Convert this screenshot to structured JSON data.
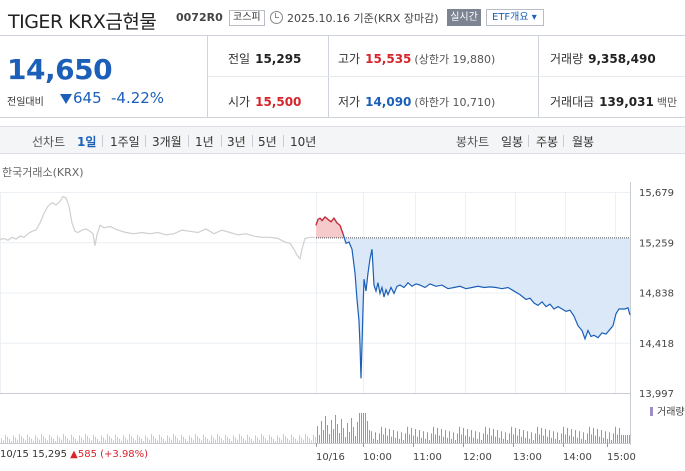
{
  "header": {
    "name": "TIGER KRX금현물",
    "code": "0072R0",
    "market": "코스피",
    "base_date": "2025.10.16 기준(KRX 장마감)",
    "realtime_label": "실시간",
    "etf_label": "ETF개요 ▾"
  },
  "quote": {
    "price": "14,650",
    "change_label": "전일대비",
    "change": "645",
    "change_pct": "-4.22%",
    "prev_close_label": "전일",
    "prev_close": "15,295",
    "open_label": "시가",
    "open": "15,500",
    "high_label": "고가",
    "high": "15,535",
    "upper_limit": "(상한가 19,880)",
    "low_label": "저가",
    "low": "14,090",
    "lower_limit": "(하한가 10,710)",
    "volume_label": "거래량",
    "volume": "9,358,490",
    "amount_label": "거래대금",
    "amount": "139,031",
    "amount_unit": "백만"
  },
  "tabs": {
    "line_label": "선차트",
    "line_periods": [
      "1일",
      "1주일",
      "3개월",
      "1년",
      "3년",
      "5년",
      "10년"
    ],
    "active": "1일",
    "candle_label": "봉차트",
    "candle_periods": [
      "일봉",
      "주봉",
      "월봉"
    ]
  },
  "chart_data": {
    "type": "line",
    "source": "한국거래소(KRX)",
    "y_ticks": [
      "15,679",
      "15,259",
      "14,838",
      "14,418",
      "13,997"
    ],
    "x_ticks": [
      "10/16",
      "10:00",
      "11:00",
      "12:00",
      "13:00",
      "14:00",
      "15:00"
    ],
    "ylim": [
      13997,
      15679
    ],
    "prev_close": 15295,
    "prev_day_series": [
      [
        0,
        15280
      ],
      [
        4,
        15290
      ],
      [
        8,
        15275
      ],
      [
        12,
        15300
      ],
      [
        16,
        15285
      ],
      [
        20,
        15310
      ],
      [
        24,
        15300
      ],
      [
        28,
        15330
      ],
      [
        32,
        15350
      ],
      [
        36,
        15360
      ],
      [
        40,
        15420
      ],
      [
        44,
        15500
      ],
      [
        48,
        15560
      ],
      [
        52,
        15590
      ],
      [
        56,
        15570
      ],
      [
        60,
        15600
      ],
      [
        63,
        15640
      ],
      [
        66,
        15630
      ],
      [
        69,
        15560
      ],
      [
        72,
        15420
      ],
      [
        75,
        15350
      ],
      [
        78,
        15340
      ],
      [
        82,
        15360
      ],
      [
        86,
        15370
      ],
      [
        90,
        15350
      ],
      [
        93,
        15330
      ],
      [
        95,
        15230
      ],
      [
        97,
        15320
      ],
      [
        100,
        15400
      ],
      [
        104,
        15380
      ],
      [
        110,
        15390
      ],
      [
        118,
        15360
      ],
      [
        126,
        15340
      ],
      [
        134,
        15330
      ],
      [
        142,
        15340
      ],
      [
        150,
        15330
      ],
      [
        158,
        15340
      ],
      [
        166,
        15320
      ],
      [
        174,
        15330
      ],
      [
        182,
        15360
      ],
      [
        190,
        15350
      ],
      [
        198,
        15340
      ],
      [
        206,
        15370
      ],
      [
        214,
        15330
      ],
      [
        222,
        15360
      ],
      [
        230,
        15340
      ],
      [
        238,
        15320
      ],
      [
        246,
        15330
      ],
      [
        254,
        15310
      ],
      [
        262,
        15300
      ],
      [
        270,
        15300
      ],
      [
        278,
        15290
      ],
      [
        285,
        15260
      ],
      [
        290,
        15250
      ],
      [
        294,
        15200
      ],
      [
        297,
        15150
      ],
      [
        300,
        15120
      ],
      [
        302,
        15200
      ],
      [
        305,
        15290
      ],
      [
        310,
        15300
      ],
      [
        315,
        15300
      ]
    ],
    "series": [
      [
        316,
        15400
      ],
      [
        318,
        15450
      ],
      [
        320,
        15460
      ],
      [
        322,
        15440
      ],
      [
        325,
        15470
      ],
      [
        328,
        15450
      ],
      [
        331,
        15430
      ],
      [
        334,
        15460
      ],
      [
        337,
        15420
      ],
      [
        340,
        15400
      ],
      [
        343,
        15330
      ],
      [
        346,
        15250
      ],
      [
        349,
        15260
      ],
      [
        352,
        15200
      ],
      [
        355,
        15000
      ],
      [
        357,
        14780
      ],
      [
        359,
        14600
      ],
      [
        360,
        14400
      ],
      [
        361,
        14120
      ],
      [
        362,
        14400
      ],
      [
        363,
        14700
      ],
      [
        364,
        14950
      ],
      [
        366,
        14850
      ],
      [
        368,
        15000
      ],
      [
        370,
        15120
      ],
      [
        372,
        15200
      ],
      [
        374,
        14900
      ],
      [
        376,
        14850
      ],
      [
        378,
        14920
      ],
      [
        380,
        14830
      ],
      [
        382,
        14880
      ],
      [
        384,
        14800
      ],
      [
        386,
        14860
      ],
      [
        388,
        14820
      ],
      [
        391,
        14880
      ],
      [
        394,
        14830
      ],
      [
        397,
        14890
      ],
      [
        400,
        14900
      ],
      [
        404,
        14880
      ],
      [
        408,
        14920
      ],
      [
        412,
        14890
      ],
      [
        416,
        14910
      ],
      [
        420,
        14900
      ],
      [
        425,
        14880
      ],
      [
        430,
        14910
      ],
      [
        436,
        14890
      ],
      [
        442,
        14900
      ],
      [
        448,
        14870
      ],
      [
        454,
        14880
      ],
      [
        460,
        14890
      ],
      [
        466,
        14870
      ],
      [
        472,
        14880
      ],
      [
        478,
        14890
      ],
      [
        484,
        14880
      ],
      [
        490,
        14885
      ],
      [
        496,
        14880
      ],
      [
        502,
        14870
      ],
      [
        508,
        14880
      ],
      [
        514,
        14850
      ],
      [
        520,
        14820
      ],
      [
        526,
        14780
      ],
      [
        530,
        14790
      ],
      [
        534,
        14750
      ],
      [
        538,
        14730
      ],
      [
        542,
        14760
      ],
      [
        546,
        14720
      ],
      [
        550,
        14740
      ],
      [
        554,
        14700
      ],
      [
        558,
        14720
      ],
      [
        562,
        14700
      ],
      [
        566,
        14680
      ],
      [
        570,
        14690
      ],
      [
        574,
        14640
      ],
      [
        578,
        14560
      ],
      [
        582,
        14520
      ],
      [
        585,
        14450
      ],
      [
        588,
        14520
      ],
      [
        591,
        14470
      ],
      [
        594,
        14480
      ],
      [
        598,
        14460
      ],
      [
        602,
        14500
      ],
      [
        606,
        14490
      ],
      [
        610,
        14530
      ],
      [
        613,
        14560
      ],
      [
        616,
        14660
      ],
      [
        619,
        14700
      ],
      [
        622,
        14700
      ],
      [
        625,
        14700
      ],
      [
        628,
        14710
      ],
      [
        630,
        14650
      ]
    ],
    "volume_label": "거래량",
    "prev_summary": "10/15 15,295 ▲585 (+3.98%)",
    "colors": {
      "line": "#1b5fb8",
      "fill": "#dbe8f7",
      "up": "#d6242b",
      "upfill": "#f6c9cb",
      "volume": "#9f8dc3"
    }
  }
}
